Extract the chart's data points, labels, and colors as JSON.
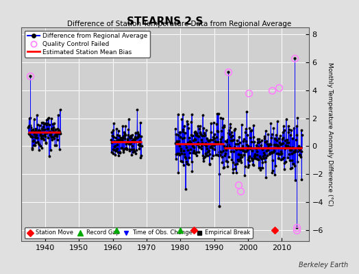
{
  "title": "STEARNS 2 S",
  "subtitle": "Difference of Station Temperature Data from Regional Average",
  "ylabel": "Monthly Temperature Anomaly Difference (°C)",
  "xlabel_ticks": [
    1940,
    1950,
    1960,
    1970,
    1980,
    1990,
    2000,
    2010
  ],
  "yticks": [
    -6,
    -4,
    -2,
    0,
    2,
    4,
    6,
    8
  ],
  "ylim": [
    -6.8,
    8.5
  ],
  "xlim": [
    1933,
    2018
  ],
  "bg_color": "#e0e0e0",
  "plot_bg_color": "#d0d0d0",
  "grid_color": "#ffffff",
  "line_color": "#0000ff",
  "dot_color": "#000000",
  "bias_color": "#ff0000",
  "qc_color": "#ff80ff",
  "watermark": "Berkeley Earth",
  "segments": [
    {
      "xstart": 1935.0,
      "xend": 1944.5,
      "bias": 1.0
    },
    {
      "xstart": 1959.5,
      "xend": 1968.5,
      "bias": 0.3
    },
    {
      "xstart": 1978.5,
      "xend": 1993.0,
      "bias": 0.15
    },
    {
      "xstart": 1993.0,
      "xend": 2016.0,
      "bias": -0.15
    }
  ],
  "record_gaps": [
    1961.0,
    1980.0
  ],
  "station_moves": [
    1984.0,
    2008.0
  ],
  "obs_changes": [],
  "empirical_breaks": [],
  "qc_failed_approx": [
    [
      1935.5,
      5.0
    ],
    [
      1994.2,
      5.3
    ],
    [
      1997.2,
      -2.8
    ],
    [
      1997.8,
      -3.2
    ],
    [
      2000.2,
      3.8
    ],
    [
      2007.2,
      4.0
    ],
    [
      2009.2,
      4.2
    ],
    [
      2013.8,
      6.3
    ],
    [
      2014.5,
      -5.8
    ]
  ],
  "seed": 42,
  "noise_segs": [
    0.65,
    0.6,
    1.0,
    0.85
  ],
  "n_points_seg": [
    115,
    110,
    175,
    270
  ]
}
